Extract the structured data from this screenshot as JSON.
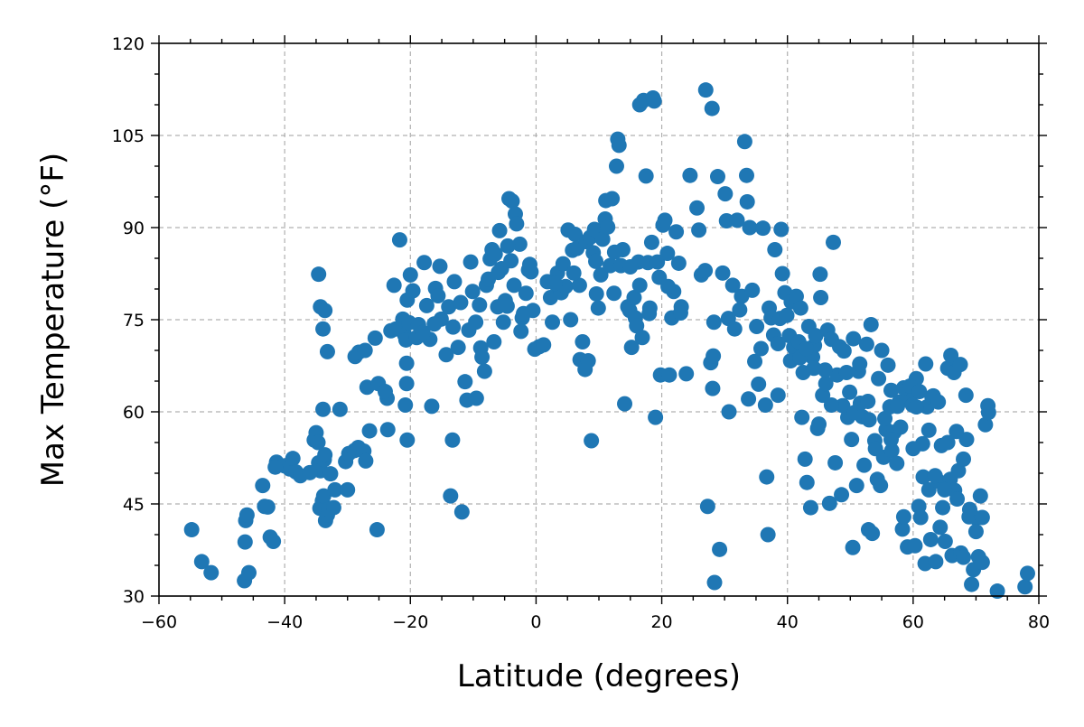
{
  "chart_data": {
    "type": "scatter",
    "xlabel": "Latitude (degrees)",
    "ylabel": "Max Temperature (°F)",
    "xlim": [
      -60,
      80
    ],
    "ylim": [
      30,
      120
    ],
    "x_ticks": [
      -60,
      -40,
      -20,
      0,
      20,
      40,
      60,
      80
    ],
    "y_ticks": [
      30,
      45,
      60,
      75,
      90,
      105,
      120
    ],
    "x_tick_labels": [
      "−60",
      "−40",
      "−20",
      "0",
      "20",
      "40",
      "60",
      "80"
    ],
    "y_tick_labels": [
      "30",
      "45",
      "60",
      "75",
      "90",
      "105",
      "120"
    ],
    "x_minor_step": 5,
    "y_minor_step": 5,
    "grid": true,
    "marker_color": "#1f77b4",
    "points": [
      [
        -54.8,
        40.8
      ],
      [
        -53.2,
        35.6
      ],
      [
        -51.7,
        33.8
      ],
      [
        -46.4,
        32.5
      ],
      [
        -45.7,
        33.8
      ],
      [
        -46.2,
        42.3
      ],
      [
        -46.0,
        43.2
      ],
      [
        -46.3,
        38.8
      ],
      [
        -43.5,
        48.0
      ],
      [
        -43.2,
        44.6
      ],
      [
        -42.7,
        44.5
      ],
      [
        -42.3,
        39.6
      ],
      [
        -41.8,
        38.9
      ],
      [
        -41.3,
        51.8
      ],
      [
        -40.0,
        51.2
      ],
      [
        -39.2,
        50.7
      ],
      [
        -38.7,
        52.4
      ],
      [
        -38.2,
        50.2
      ],
      [
        -37.5,
        49.6
      ],
      [
        -35.3,
        55.4
      ],
      [
        -35.0,
        56.6
      ],
      [
        -34.7,
        55.0
      ],
      [
        -34.6,
        51.7
      ],
      [
        -34.3,
        50.4
      ],
      [
        -34.4,
        44.3
      ],
      [
        -34.0,
        45.5
      ],
      [
        -33.8,
        46.3
      ],
      [
        -33.5,
        42.3
      ],
      [
        -33.2,
        43.2
      ],
      [
        -33.0,
        44.1
      ],
      [
        -32.7,
        49.9
      ],
      [
        -32.2,
        44.4
      ],
      [
        -32.0,
        47.3
      ],
      [
        -33.7,
        52.2
      ],
      [
        -33.6,
        53.0
      ],
      [
        -34.6,
        82.4
      ],
      [
        -34.3,
        77.1
      ],
      [
        -33.6,
        76.5
      ],
      [
        -33.9,
        73.5
      ],
      [
        -33.2,
        69.8
      ],
      [
        -33.9,
        60.4
      ],
      [
        -31.2,
        60.4
      ],
      [
        -30.3,
        51.9
      ],
      [
        -29.8,
        53.2
      ],
      [
        -28.9,
        53.7
      ],
      [
        -28.3,
        54.2
      ],
      [
        -27.4,
        53.6
      ],
      [
        -27.1,
        52.0
      ],
      [
        -28.8,
        69.0
      ],
      [
        -28.2,
        69.7
      ],
      [
        -27.2,
        70.0
      ],
      [
        -26.9,
        64.0
      ],
      [
        -25.6,
        72.0
      ],
      [
        -25.1,
        64.6
      ],
      [
        -25.3,
        40.8
      ],
      [
        -23.6,
        57.1
      ],
      [
        -23.7,
        62.2
      ],
      [
        -23.1,
        73.2
      ],
      [
        -22.6,
        80.6
      ],
      [
        -22.3,
        73.5
      ],
      [
        -21.7,
        88.0
      ],
      [
        -21.2,
        75.1
      ],
      [
        -20.9,
        72.5
      ],
      [
        -20.7,
        71.7
      ],
      [
        -20.8,
        61.1
      ],
      [
        -20.6,
        64.6
      ],
      [
        -20.6,
        67.9
      ],
      [
        -20.5,
        55.4
      ],
      [
        -20.2,
        74.5
      ],
      [
        -20.0,
        82.3
      ],
      [
        -20.5,
        78.2
      ],
      [
        -19.6,
        79.7
      ],
      [
        -19.0,
        72.1
      ],
      [
        -18.7,
        74.2
      ],
      [
        -17.8,
        84.3
      ],
      [
        -17.4,
        77.3
      ],
      [
        -16.9,
        71.8
      ],
      [
        -16.6,
        60.9
      ],
      [
        -16.0,
        80.1
      ],
      [
        -15.6,
        78.9
      ],
      [
        -15.3,
        83.7
      ],
      [
        -15.1,
        75.1
      ],
      [
        -14.3,
        69.3
      ],
      [
        -13.9,
        77.1
      ],
      [
        -13.2,
        73.8
      ],
      [
        -13.0,
        81.2
      ],
      [
        -12.4,
        70.5
      ],
      [
        -13.3,
        55.4
      ],
      [
        -13.6,
        46.3
      ],
      [
        -11.8,
        43.7
      ],
      [
        -11.3,
        64.9
      ],
      [
        -11.0,
        61.9
      ],
      [
        -10.7,
        73.3
      ],
      [
        -10.4,
        84.4
      ],
      [
        -10.1,
        79.6
      ],
      [
        -9.6,
        74.6
      ],
      [
        -9.5,
        62.2
      ],
      [
        -8.8,
        70.4
      ],
      [
        -8.6,
        68.9
      ],
      [
        -8.2,
        66.6
      ],
      [
        -7.9,
        80.6
      ],
      [
        -7.6,
        81.6
      ],
      [
        -7.3,
        84.9
      ],
      [
        -7.0,
        86.4
      ],
      [
        -6.7,
        71.4
      ],
      [
        -6.5,
        85.7
      ],
      [
        -6.1,
        77.1
      ],
      [
        -5.8,
        89.5
      ],
      [
        -5.5,
        83.3
      ],
      [
        -5.2,
        74.6
      ],
      [
        -4.9,
        78.1
      ],
      [
        -4.6,
        77.2
      ],
      [
        -4.3,
        94.7
      ],
      [
        -3.8,
        94.3
      ],
      [
        -4.0,
        84.6
      ],
      [
        -3.5,
        80.6
      ],
      [
        -3.3,
        92.2
      ],
      [
        -3.1,
        90.6
      ],
      [
        -2.6,
        87.3
      ],
      [
        -2.2,
        75.3
      ],
      [
        -2.4,
        73.1
      ],
      [
        -2.0,
        76.0
      ],
      [
        -1.6,
        79.3
      ],
      [
        -1.2,
        83.1
      ],
      [
        -0.8,
        82.8
      ],
      [
        -0.5,
        76.5
      ],
      [
        -0.2,
        70.2
      ],
      [
        0.5,
        70.6
      ],
      [
        1.2,
        70.9
      ],
      [
        1.8,
        81.2
      ],
      [
        2.3,
        78.6
      ],
      [
        2.6,
        74.6
      ],
      [
        3.4,
        82.6
      ],
      [
        4.0,
        79.4
      ],
      [
        4.3,
        84.1
      ],
      [
        4.7,
        80.4
      ],
      [
        5.1,
        89.6
      ],
      [
        5.5,
        75.0
      ],
      [
        5.8,
        86.3
      ],
      [
        6.2,
        88.9
      ],
      [
        6.5,
        86.6
      ],
      [
        6.9,
        80.6
      ],
      [
        7.0,
        68.5
      ],
      [
        7.4,
        71.4
      ],
      [
        7.8,
        66.9
      ],
      [
        8.0,
        87.7
      ],
      [
        8.3,
        68.3
      ],
      [
        8.6,
        88.4
      ],
      [
        8.8,
        55.3
      ],
      [
        9.1,
        85.9
      ],
      [
        9.3,
        89.7
      ],
      [
        9.6,
        79.2
      ],
      [
        9.9,
        76.9
      ],
      [
        10.3,
        82.3
      ],
      [
        10.6,
        88.1
      ],
      [
        11.0,
        91.4
      ],
      [
        11.1,
        94.4
      ],
      [
        11.4,
        90.1
      ],
      [
        11.8,
        83.8
      ],
      [
        12.1,
        94.7
      ],
      [
        12.4,
        79.3
      ],
      [
        12.8,
        100.0
      ],
      [
        13.0,
        104.4
      ],
      [
        13.2,
        103.4
      ],
      [
        13.5,
        83.8
      ],
      [
        13.8,
        86.4
      ],
      [
        14.1,
        61.3
      ],
      [
        14.6,
        77.1
      ],
      [
        14.9,
        76.5
      ],
      [
        15.2,
        70.5
      ],
      [
        15.6,
        78.6
      ],
      [
        15.8,
        75.3
      ],
      [
        16.0,
        74.0
      ],
      [
        16.3,
        84.4
      ],
      [
        16.5,
        80.6
      ],
      [
        16.9,
        72.1
      ],
      [
        16.5,
        110.0
      ],
      [
        17.1,
        110.7
      ],
      [
        17.5,
        98.4
      ],
      [
        17.8,
        84.3
      ],
      [
        18.1,
        76.9
      ],
      [
        18.4,
        87.6
      ],
      [
        18.6,
        111.1
      ],
      [
        18.8,
        110.6
      ],
      [
        19.0,
        59.1
      ],
      [
        19.3,
        84.4
      ],
      [
        19.6,
        81.9
      ],
      [
        19.8,
        66.0
      ],
      [
        20.2,
        90.4
      ],
      [
        20.5,
        91.2
      ],
      [
        20.9,
        85.8
      ],
      [
        21.2,
        66.0
      ],
      [
        21.6,
        75.3
      ],
      [
        21.9,
        79.6
      ],
      [
        22.3,
        89.3
      ],
      [
        22.7,
        84.2
      ],
      [
        23.1,
        77.1
      ],
      [
        23.9,
        66.2
      ],
      [
        24.5,
        98.5
      ],
      [
        25.6,
        93.2
      ],
      [
        25.9,
        89.6
      ],
      [
        26.3,
        82.3
      ],
      [
        26.9,
        83.0
      ],
      [
        27.0,
        112.4
      ],
      [
        27.3,
        44.6
      ],
      [
        27.8,
        68.0
      ],
      [
        28.0,
        109.4
      ],
      [
        28.1,
        63.8
      ],
      [
        28.2,
        69.1
      ],
      [
        28.3,
        74.6
      ],
      [
        28.4,
        32.2
      ],
      [
        28.9,
        98.3
      ],
      [
        29.2,
        37.6
      ],
      [
        29.7,
        82.6
      ],
      [
        30.1,
        95.5
      ],
      [
        30.3,
        91.1
      ],
      [
        30.6,
        75.2
      ],
      [
        30.7,
        60.0
      ],
      [
        31.3,
        80.6
      ],
      [
        31.6,
        73.5
      ],
      [
        32.0,
        91.2
      ],
      [
        32.4,
        76.6
      ],
      [
        32.7,
        78.8
      ],
      [
        33.2,
        104.0
      ],
      [
        33.5,
        98.5
      ],
      [
        33.6,
        94.2
      ],
      [
        33.8,
        62.1
      ],
      [
        34.0,
        90.0
      ],
      [
        34.4,
        79.8
      ],
      [
        34.8,
        68.2
      ],
      [
        35.1,
        73.9
      ],
      [
        35.4,
        64.5
      ],
      [
        35.8,
        70.3
      ],
      [
        36.1,
        89.9
      ],
      [
        36.5,
        61.1
      ],
      [
        36.7,
        49.4
      ],
      [
        36.9,
        40.0
      ],
      [
        37.1,
        76.9
      ],
      [
        37.4,
        75.3
      ],
      [
        37.8,
        72.5
      ],
      [
        38.0,
        86.4
      ],
      [
        38.5,
        62.7
      ],
      [
        38.8,
        75.2
      ],
      [
        39.0,
        89.7
      ],
      [
        39.2,
        82.5
      ],
      [
        39.6,
        79.4
      ],
      [
        39.9,
        75.7
      ],
      [
        40.3,
        72.4
      ],
      [
        40.6,
        77.9
      ],
      [
        41.0,
        70.5
      ],
      [
        41.4,
        78.8
      ],
      [
        41.8,
        71.4
      ],
      [
        42.1,
        76.9
      ],
      [
        42.3,
        59.1
      ],
      [
        42.5,
        66.4
      ],
      [
        42.8,
        52.3
      ],
      [
        43.1,
        48.5
      ],
      [
        43.4,
        73.9
      ],
      [
        43.7,
        44.4
      ],
      [
        44.0,
        68.9
      ],
      [
        44.3,
        70.8
      ],
      [
        44.5,
        72.4
      ],
      [
        44.8,
        57.3
      ],
      [
        45.2,
        82.4
      ],
      [
        45.3,
        78.6
      ],
      [
        45.6,
        62.7
      ],
      [
        46.1,
        64.6
      ],
      [
        46.4,
        73.3
      ],
      [
        46.7,
        45.1
      ],
      [
        47.0,
        71.8
      ],
      [
        47.3,
        87.6
      ],
      [
        47.6,
        51.7
      ],
      [
        47.9,
        66.0
      ],
      [
        48.3,
        70.6
      ],
      [
        48.6,
        46.5
      ],
      [
        48.8,
        61.0
      ],
      [
        49.4,
        66.4
      ],
      [
        49.6,
        59.1
      ],
      [
        49.9,
        63.2
      ],
      [
        50.2,
        55.5
      ],
      [
        50.4,
        37.9
      ],
      [
        50.7,
        59.9
      ],
      [
        51.0,
        48.0
      ],
      [
        51.3,
        66.6
      ],
      [
        51.6,
        61.4
      ],
      [
        51.9,
        59.2
      ],
      [
        52.2,
        51.3
      ],
      [
        52.6,
        71.0
      ],
      [
        52.9,
        40.8
      ],
      [
        53.3,
        74.2
      ],
      [
        53.5,
        40.2
      ],
      [
        53.9,
        55.3
      ],
      [
        54.3,
        49.0
      ],
      [
        54.5,
        65.4
      ],
      [
        54.8,
        48.0
      ],
      [
        55.3,
        52.6
      ],
      [
        55.7,
        57.1
      ],
      [
        56.0,
        67.6
      ],
      [
        56.3,
        60.8
      ],
      [
        56.6,
        53.7
      ],
      [
        57.0,
        56.7
      ],
      [
        57.4,
        51.6
      ],
      [
        57.8,
        61.6
      ],
      [
        58.3,
        40.9
      ],
      [
        58.5,
        42.9
      ],
      [
        59.1,
        38.0
      ],
      [
        59.5,
        62.2
      ],
      [
        59.9,
        61.1
      ],
      [
        60.3,
        38.2
      ],
      [
        60.5,
        65.4
      ],
      [
        60.9,
        44.6
      ],
      [
        61.2,
        42.8
      ],
      [
        61.6,
        49.4
      ],
      [
        61.9,
        35.3
      ],
      [
        62.2,
        60.8
      ],
      [
        62.5,
        47.3
      ],
      [
        62.8,
        39.2
      ],
      [
        63.2,
        62.6
      ],
      [
        63.6,
        35.6
      ],
      [
        64.0,
        48.7
      ],
      [
        64.3,
        41.2
      ],
      [
        64.7,
        44.4
      ],
      [
        65.1,
        38.9
      ],
      [
        65.5,
        67.1
      ],
      [
        65.9,
        49.0
      ],
      [
        66.2,
        36.6
      ],
      [
        66.6,
        47.2
      ],
      [
        66.9,
        56.8
      ],
      [
        67.2,
        50.4
      ],
      [
        67.6,
        37.0
      ],
      [
        68.0,
        52.3
      ],
      [
        68.4,
        62.7
      ],
      [
        68.9,
        42.9
      ],
      [
        69.3,
        31.9
      ],
      [
        69.6,
        34.3
      ],
      [
        70.0,
        42.7
      ],
      [
        70.4,
        36.4
      ],
      [
        70.7,
        46.3
      ],
      [
        71.0,
        42.8
      ],
      [
        71.5,
        57.9
      ],
      [
        71.9,
        61.0
      ],
      [
        72.0,
        59.9
      ],
      [
        73.4,
        30.8
      ],
      [
        77.8,
        31.5
      ],
      [
        78.2,
        33.7
      ],
      [
        -41.5,
        51.0
      ],
      [
        -36.0,
        50.1
      ],
      [
        -30.0,
        47.3
      ],
      [
        -26.5,
        56.9
      ],
      [
        -24.0,
        63.3
      ],
      [
        -18.0,
        72.9
      ],
      [
        -16.2,
        74.3
      ],
      [
        -12.0,
        77.8
      ],
      [
        -9.0,
        77.4
      ],
      [
        -6.0,
        82.7
      ],
      [
        -4.5,
        87.0
      ],
      [
        -1.0,
        84.0
      ],
      [
        3.0,
        80.9
      ],
      [
        6.0,
        82.6
      ],
      [
        9.5,
        84.5
      ],
      [
        12.5,
        86.0
      ],
      [
        15.0,
        83.6
      ],
      [
        18.0,
        76.0
      ],
      [
        21.0,
        80.4
      ],
      [
        23.0,
        76.1
      ],
      [
        38.5,
        71.1
      ],
      [
        40.5,
        68.3
      ],
      [
        42.0,
        68.8
      ],
      [
        43.0,
        70.3
      ],
      [
        44.2,
        67.1
      ],
      [
        46.0,
        66.8
      ],
      [
        49.0,
        69.9
      ],
      [
        50.5,
        71.9
      ],
      [
        51.5,
        67.8
      ],
      [
        52.8,
        61.7
      ],
      [
        54.0,
        54.0
      ],
      [
        55.0,
        70.0
      ],
      [
        56.5,
        63.5
      ],
      [
        57.5,
        60.9
      ],
      [
        58.5,
        63.9
      ],
      [
        59.5,
        64.2
      ],
      [
        60.5,
        60.8
      ],
      [
        61.0,
        63.3
      ],
      [
        61.5,
        54.8
      ],
      [
        62.0,
        67.8
      ],
      [
        63.0,
        62.4
      ],
      [
        64.0,
        61.6
      ],
      [
        64.5,
        54.5
      ],
      [
        65.5,
        55.0
      ],
      [
        66.0,
        69.2
      ],
      [
        66.5,
        66.4
      ],
      [
        67.5,
        67.7
      ],
      [
        68.5,
        55.5
      ],
      [
        69.0,
        44.1
      ],
      [
        70.0,
        40.5
      ],
      [
        71.0,
        35.5
      ],
      [
        45.0,
        58.0
      ],
      [
        47.0,
        61.1
      ],
      [
        53.0,
        58.7
      ],
      [
        55.5,
        58.9
      ],
      [
        56.5,
        55.5
      ],
      [
        58.0,
        57.5
      ],
      [
        60.0,
        54.0
      ],
      [
        62.5,
        57.0
      ],
      [
        63.5,
        49.6
      ],
      [
        65.0,
        47.3
      ],
      [
        67.0,
        45.8
      ],
      [
        68.0,
        36.3
      ]
    ]
  }
}
